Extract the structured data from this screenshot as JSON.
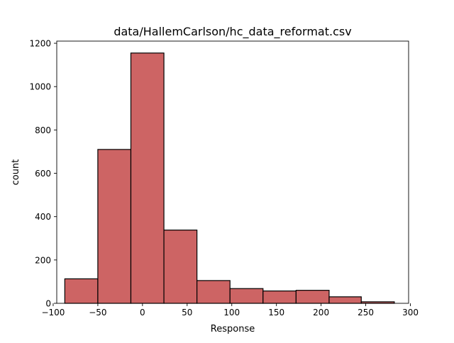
{
  "chart_data": {
    "type": "bar",
    "subtype": "histogram",
    "title": "data/HallemCarlson/hc_data_reformat.csv",
    "xlabel": "Response",
    "ylabel": "count",
    "xlim": [
      -96,
      298
    ],
    "ylim": [
      0,
      1210
    ],
    "xticks": [
      -100,
      -50,
      0,
      50,
      100,
      150,
      200,
      250,
      300
    ],
    "xtick_labels": [
      "−100",
      "−50",
      "0",
      "50",
      "100",
      "150",
      "200",
      "250",
      "300"
    ],
    "yticks": [
      0,
      200,
      400,
      600,
      800,
      1000,
      1200
    ],
    "ytick_labels": [
      "0",
      "200",
      "400",
      "600",
      "800",
      "1000",
      "1200"
    ],
    "bins": [
      {
        "x0": -87,
        "x1": -50,
        "count": 113
      },
      {
        "x0": -50,
        "x1": -13,
        "count": 710
      },
      {
        "x0": -13,
        "x1": 24,
        "count": 1155
      },
      {
        "x0": 24,
        "x1": 61,
        "count": 338
      },
      {
        "x0": 61,
        "x1": 98,
        "count": 105
      },
      {
        "x0": 98,
        "x1": 135,
        "count": 68
      },
      {
        "x0": 135,
        "x1": 172,
        "count": 57
      },
      {
        "x0": 172,
        "x1": 209,
        "count": 60
      },
      {
        "x0": 209,
        "x1": 245,
        "count": 30
      },
      {
        "x0": 245,
        "x1": 282,
        "count": 7
      }
    ],
    "bar_color": "#cd6464",
    "edge_color": "#000000",
    "grid": false
  }
}
